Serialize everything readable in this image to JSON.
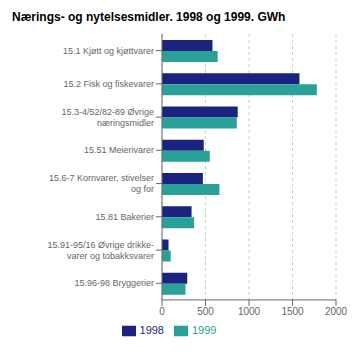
{
  "chart_data": {
    "type": "bar",
    "orientation": "horizontal",
    "title": "Nærings- og nytelsesmidler. 1998 og 1999. GWh",
    "categories": [
      "15.1 Kjøtt og kjøttvarer",
      "15.2 Fisk og fiskevarer",
      "15.3-4/52/82-89 Øvrige\nnæringsmidler",
      "15.51 Meierivarer",
      "15.6-7 Kornvarer, stivelser\nog for",
      "15.81 Bakerier",
      "15.91-95/16 Øvrige drikke-\nvarer og tobakksvarer",
      "15.96-98 Bryggerier"
    ],
    "series": [
      {
        "name": "1998",
        "color": "#1a237e",
        "values": [
          580,
          1580,
          870,
          480,
          470,
          340,
          75,
          290
        ]
      },
      {
        "name": "1999",
        "color": "#2aa198",
        "values": [
          640,
          1780,
          860,
          550,
          660,
          370,
          100,
          270
        ]
      }
    ],
    "xlim": [
      0,
      2000
    ],
    "xticks": [
      0,
      500,
      1000,
      1500,
      2000
    ],
    "grid": true,
    "legend": "bottom"
  }
}
